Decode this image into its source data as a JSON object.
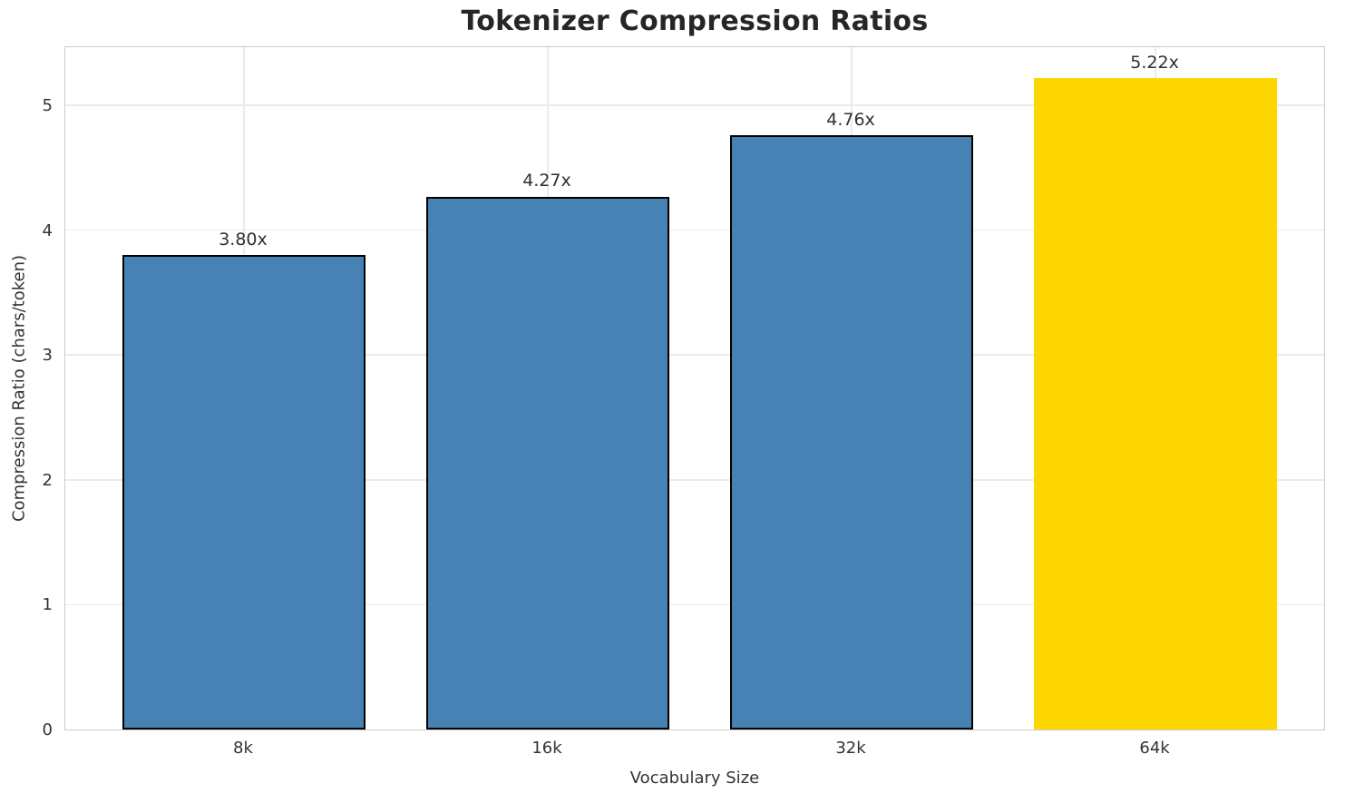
{
  "chart_data": {
    "type": "bar",
    "title": "Tokenizer Compression Ratios",
    "xlabel": "Vocabulary Size",
    "ylabel": "Compression Ratio (chars/token)",
    "categories": [
      "8k",
      "16k",
      "32k",
      "64k"
    ],
    "values": [
      3.8,
      4.27,
      4.76,
      5.22
    ],
    "value_labels": [
      "3.80x",
      "4.27x",
      "4.76x",
      "5.22x"
    ],
    "bar_colors": [
      "#4682B4",
      "#4682B4",
      "#4682B4",
      "#FFD700"
    ],
    "bar_edge_colors": [
      "#000000",
      "#000000",
      "#000000",
      "none"
    ],
    "bar_edge_width": 2,
    "bar_width": 0.8,
    "xlim": [
      -0.588,
      3.561
    ],
    "ylim": [
      0,
      5.48
    ],
    "yticks": [
      0,
      1,
      2,
      3,
      4,
      5
    ],
    "grid": true,
    "legend": "none",
    "grid_color": "#ebebeb",
    "spine_color": "#cccccc",
    "highlight_color": "#FFD700",
    "base_color": "#4682B4",
    "text_color": "#333333",
    "title_color": "#262626"
  }
}
